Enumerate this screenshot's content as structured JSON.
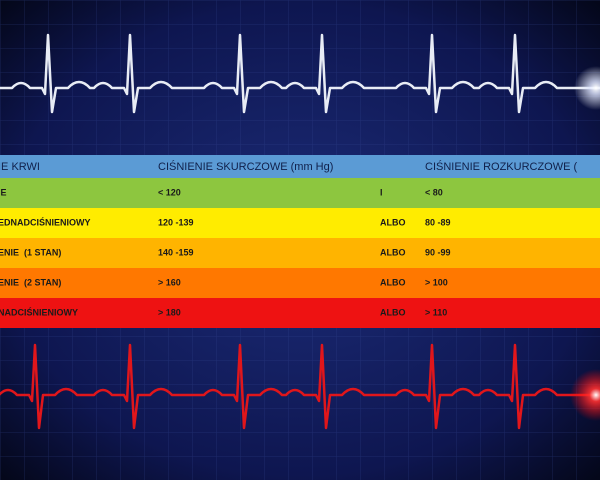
{
  "table": {
    "header": [
      "IE KRWI",
      "CIŚNIENIE SKURCZOWE (mm Hg)",
      "",
      "CIŚNIENIE ROZKURCZOWE ("
    ],
    "rows": [
      [
        "IE",
        "< 120",
        "I",
        "< 80"
      ],
      [
        "EDNADCIŚNIENIOWY",
        "120 -139",
        "ALBO",
        "80 -89"
      ],
      [
        "ENIE  (1 STAN)",
        "140 -159",
        "ALBO",
        "90 -99"
      ],
      [
        "ENIE  (2 STAN)",
        "> 160",
        "ALBO",
        "> 100"
      ],
      [
        "NADCIŚNIENIOWY",
        "> 180",
        "ALBO",
        "> 110"
      ]
    ]
  }
}
